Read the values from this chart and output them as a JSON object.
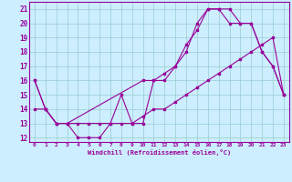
{
  "xlabel": "Windchill (Refroidissement éolien,°C)",
  "bg_color": "#cceeff",
  "line_color": "#990099",
  "grid_color": "#99cccc",
  "xlim": [
    -0.5,
    23.5
  ],
  "ylim": [
    11.7,
    21.5
  ],
  "yticks": [
    12,
    13,
    14,
    15,
    16,
    17,
    18,
    19,
    20,
    21
  ],
  "xticks": [
    0,
    1,
    2,
    3,
    4,
    5,
    6,
    7,
    8,
    9,
    10,
    11,
    12,
    13,
    14,
    15,
    16,
    17,
    18,
    19,
    20,
    21,
    22,
    23
  ],
  "line1_x": [
    0,
    1,
    2,
    3,
    4,
    5,
    6,
    7,
    8,
    9,
    10,
    11,
    12,
    13,
    14,
    15,
    16,
    17,
    18,
    19,
    20,
    21,
    22,
    23
  ],
  "line1_y": [
    16,
    14,
    13,
    13,
    12,
    12,
    12,
    13,
    15,
    13,
    13,
    16,
    16,
    17,
    18,
    20,
    21,
    21,
    21,
    20,
    20,
    18,
    17,
    15
  ],
  "line2_x": [
    0,
    1,
    2,
    3,
    4,
    5,
    6,
    7,
    8,
    9,
    10,
    11,
    12,
    13,
    14,
    15,
    16,
    17,
    18,
    19,
    20,
    21,
    22,
    23
  ],
  "line2_y": [
    14,
    14,
    13,
    13,
    13,
    13,
    13,
    13,
    13,
    13,
    13.5,
    14,
    14,
    14.5,
    15,
    15.5,
    16,
    16.5,
    17,
    17.5,
    18,
    18.5,
    19,
    15
  ],
  "line3_x": [
    0,
    1,
    2,
    3,
    10,
    11,
    12,
    13,
    14,
    15,
    16,
    17,
    18,
    19,
    20,
    21,
    22,
    23
  ],
  "line3_y": [
    16,
    14,
    13,
    13,
    16,
    16,
    16.5,
    17,
    18.5,
    19.5,
    21,
    21,
    20,
    20,
    20,
    18,
    17,
    15
  ]
}
